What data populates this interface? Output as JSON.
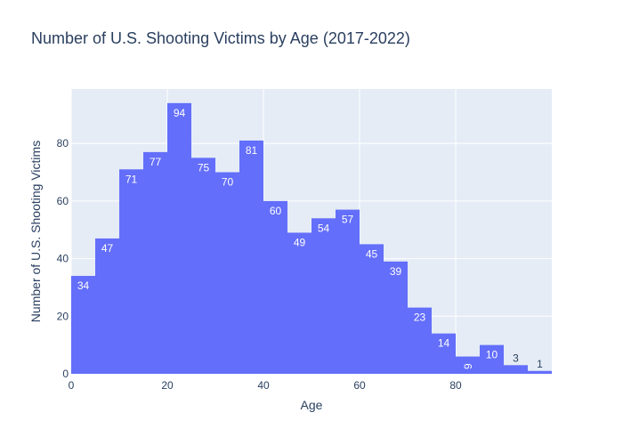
{
  "chart_data": {
    "type": "bar",
    "title": "Number of U.S. Shooting Victims by Age (2017-2022)",
    "xlabel": "Age",
    "ylabel": "Number of U.S. Shooting Victims",
    "bin_width": 5,
    "x": [
      0,
      5,
      10,
      15,
      20,
      25,
      30,
      35,
      40,
      45,
      50,
      55,
      60,
      65,
      70,
      75,
      80,
      85,
      90,
      95
    ],
    "values": [
      34,
      47,
      71,
      77,
      94,
      75,
      70,
      81,
      60,
      49,
      54,
      57,
      45,
      39,
      23,
      14,
      6,
      10,
      3,
      1
    ],
    "xlim": [
      0,
      100
    ],
    "ylim": [
      0,
      98.9
    ],
    "x_ticks": [
      0,
      20,
      40,
      60,
      80
    ],
    "y_ticks": [
      0,
      20,
      40,
      60,
      80
    ],
    "grid": true,
    "colors": {
      "bar": "#636efa",
      "plot_bg": "#e5ecf6",
      "grid": "#ffffff",
      "text": "#2a3f5f"
    }
  }
}
